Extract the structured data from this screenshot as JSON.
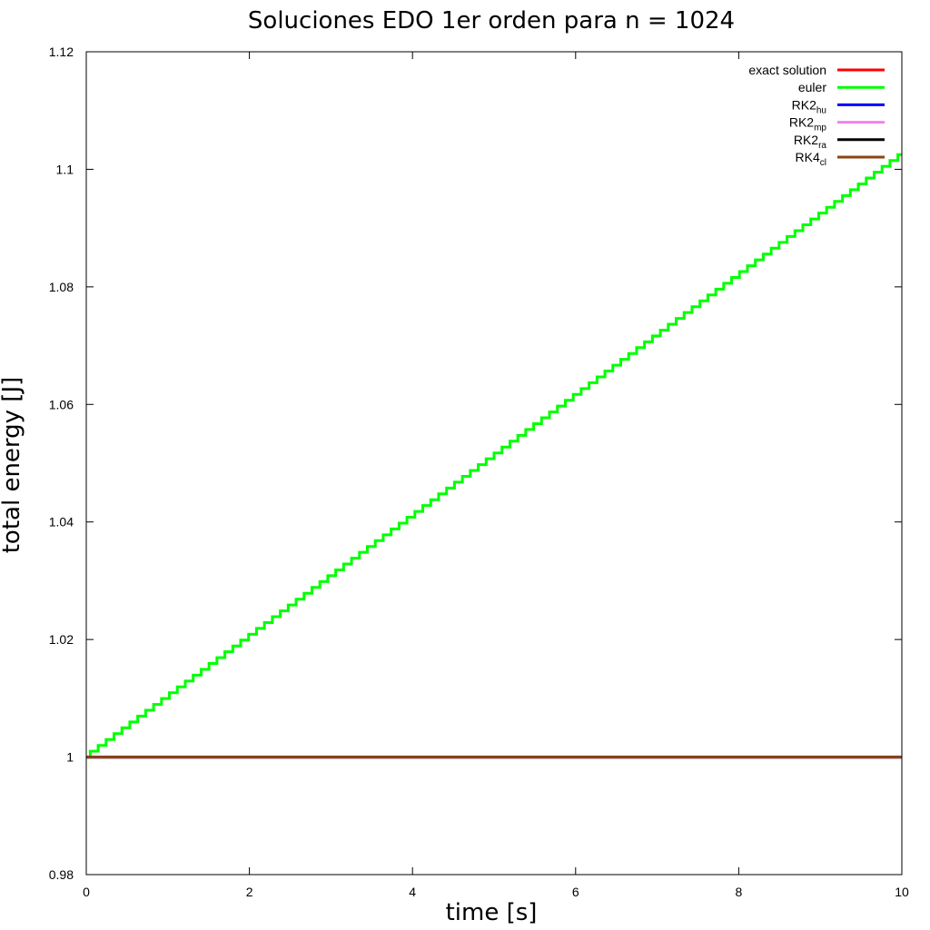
{
  "chart_data": {
    "type": "line",
    "title": "Soluciones EDO 1er orden para n = 1024",
    "xlabel": "time [s]",
    "ylabel": "total energy [J]",
    "xlim": [
      0,
      10
    ],
    "ylim": [
      0.98,
      1.12
    ],
    "xticks": [
      0,
      2,
      4,
      6,
      8,
      10
    ],
    "xtick_labels": [
      "0",
      "2",
      "4",
      "6",
      "8",
      "10"
    ],
    "yticks": [
      0.98,
      1.0,
      1.02,
      1.04,
      1.06,
      1.08,
      1.1,
      1.12
    ],
    "ytick_labels": [
      "0.98",
      "1",
      "1.02",
      "1.04",
      "1.06",
      "1.08",
      "1.1",
      "1.12"
    ],
    "grid": false,
    "legend_position": "top-right",
    "series": [
      {
        "name": "exact solution",
        "sub": "",
        "color": "#ff0000",
        "style": "line",
        "x": [
          0,
          10
        ],
        "y": [
          1.0,
          1.0
        ]
      },
      {
        "name": "euler",
        "sub": "",
        "color": "#00ff00",
        "style": "staircase",
        "x": [
          0,
          10
        ],
        "y": [
          1.0,
          1.1025
        ],
        "steps": 103
      },
      {
        "name": "RK2",
        "sub": "hu",
        "color": "#0000ff",
        "style": "line",
        "x": [
          0,
          10
        ],
        "y": [
          1.0,
          1.0
        ]
      },
      {
        "name": "RK2",
        "sub": "mp",
        "color": "#ee82ee",
        "style": "line",
        "x": [
          0,
          10
        ],
        "y": [
          1.0,
          1.0
        ]
      },
      {
        "name": "RK2",
        "sub": "ra",
        "color": "#000000",
        "style": "line",
        "x": [
          0,
          10
        ],
        "y": [
          1.0,
          1.0
        ]
      },
      {
        "name": "RK4",
        "sub": "cl",
        "color": "#8b4513",
        "style": "line",
        "x": [
          0,
          10
        ],
        "y": [
          1.0,
          1.0
        ]
      }
    ]
  }
}
